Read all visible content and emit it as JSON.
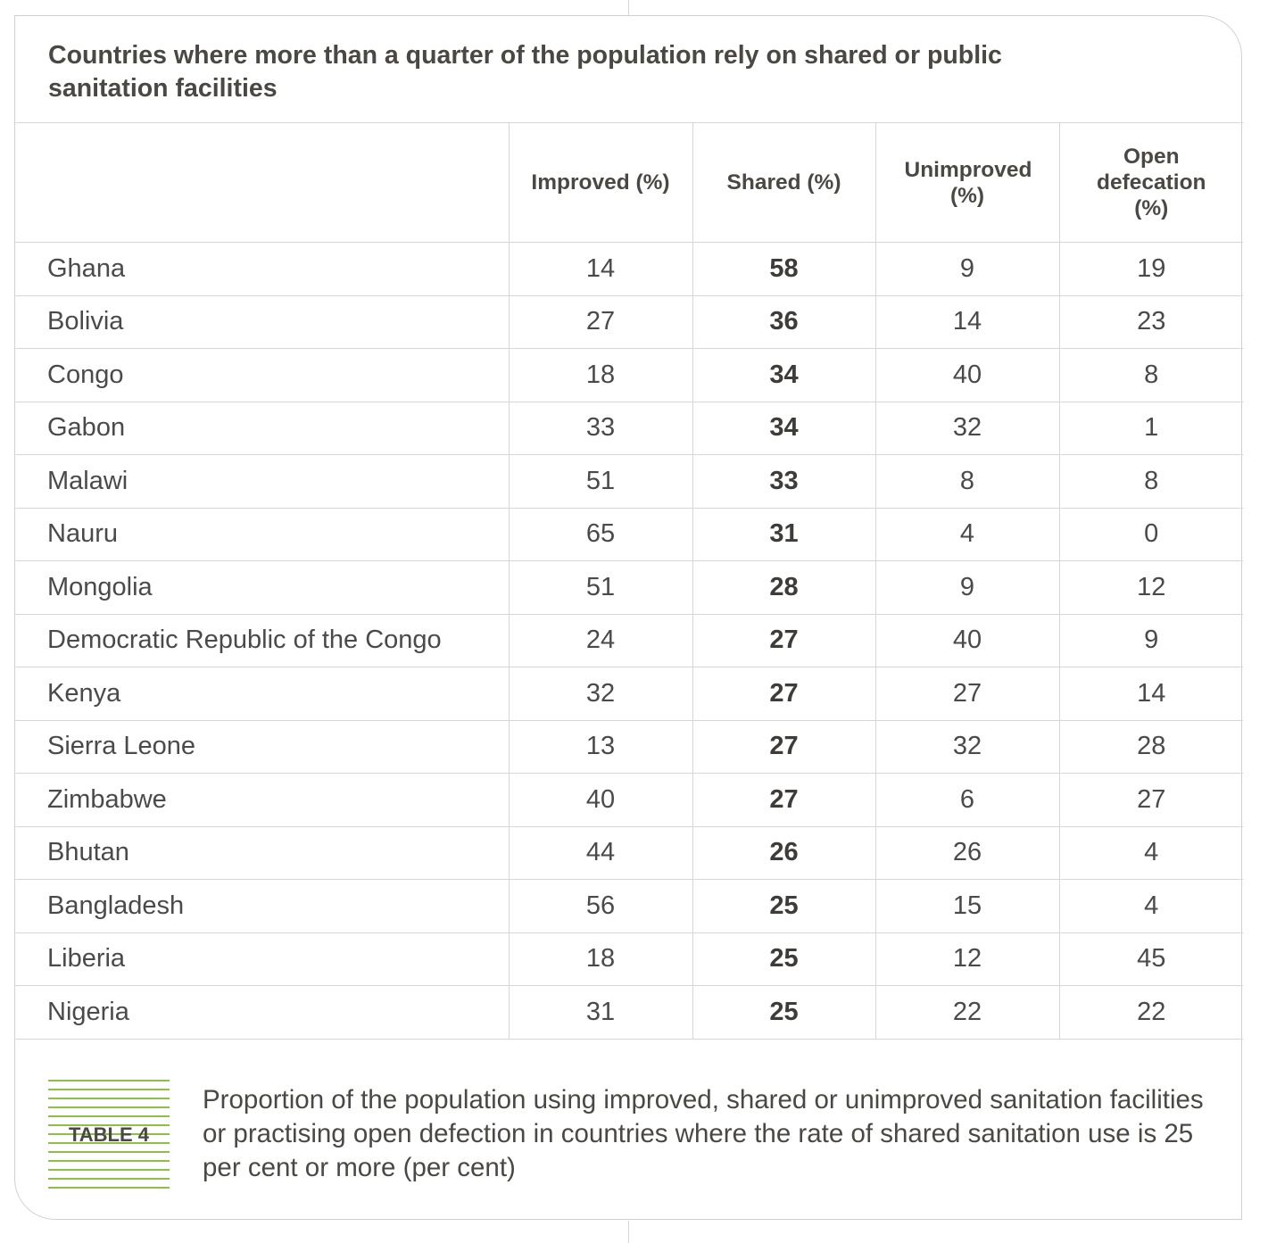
{
  "title": "Countries where more than a quarter of the population rely on shared or public sanitation facilities",
  "table": {
    "headers": [
      "",
      "Improved (%)",
      "Shared (%)",
      "Unimproved (%)",
      "Open defecation (%)"
    ],
    "rows": [
      {
        "country": "Ghana",
        "improved": "14",
        "shared": "58",
        "unimproved": "9",
        "open_defecation": "19"
      },
      {
        "country": "Bolivia",
        "improved": "27",
        "shared": "36",
        "unimproved": "14",
        "open_defecation": "23"
      },
      {
        "country": "Congo",
        "improved": "18",
        "shared": "34",
        "unimproved": "40",
        "open_defecation": "8"
      },
      {
        "country": "Gabon",
        "improved": "33",
        "shared": "34",
        "unimproved": "32",
        "open_defecation": "1"
      },
      {
        "country": "Malawi",
        "improved": "51",
        "shared": "33",
        "unimproved": "8",
        "open_defecation": "8"
      },
      {
        "country": "Nauru",
        "improved": "65",
        "shared": "31",
        "unimproved": "4",
        "open_defecation": "0"
      },
      {
        "country": "Mongolia",
        "improved": "51",
        "shared": "28",
        "unimproved": "9",
        "open_defecation": "12"
      },
      {
        "country": "Democratic Republic of the Congo",
        "improved": "24",
        "shared": "27",
        "unimproved": "40",
        "open_defecation": "9"
      },
      {
        "country": "Kenya",
        "improved": "32",
        "shared": "27",
        "unimproved": "27",
        "open_defecation": "14"
      },
      {
        "country": "Sierra Leone",
        "improved": "13",
        "shared": "27",
        "unimproved": "32",
        "open_defecation": "28"
      },
      {
        "country": "Zimbabwe",
        "improved": "40",
        "shared": "27",
        "unimproved": "6",
        "open_defecation": "27"
      },
      {
        "country": "Bhutan",
        "improved": "44",
        "shared": "26",
        "unimproved": "26",
        "open_defecation": "4"
      },
      {
        "country": "Bangladesh",
        "improved": "56",
        "shared": "25",
        "unimproved": "15",
        "open_defecation": "4"
      },
      {
        "country": "Liberia",
        "improved": "18",
        "shared": "25",
        "unimproved": "12",
        "open_defecation": "45"
      },
      {
        "country": "Nigeria",
        "improved": "31",
        "shared": "25",
        "unimproved": "22",
        "open_defecation": "22"
      }
    ]
  },
  "caption": {
    "label": "TABLE 4",
    "text": "Proportion of the population using improved, shared or unimproved sanitation facilities or practising open defection in countries where the rate of shared sanitation use is 25 per cent or more (per cent)"
  },
  "colors": {
    "badge_stripes": "#8cc048",
    "border": "#d0d0d0",
    "text": "#4b4844"
  }
}
